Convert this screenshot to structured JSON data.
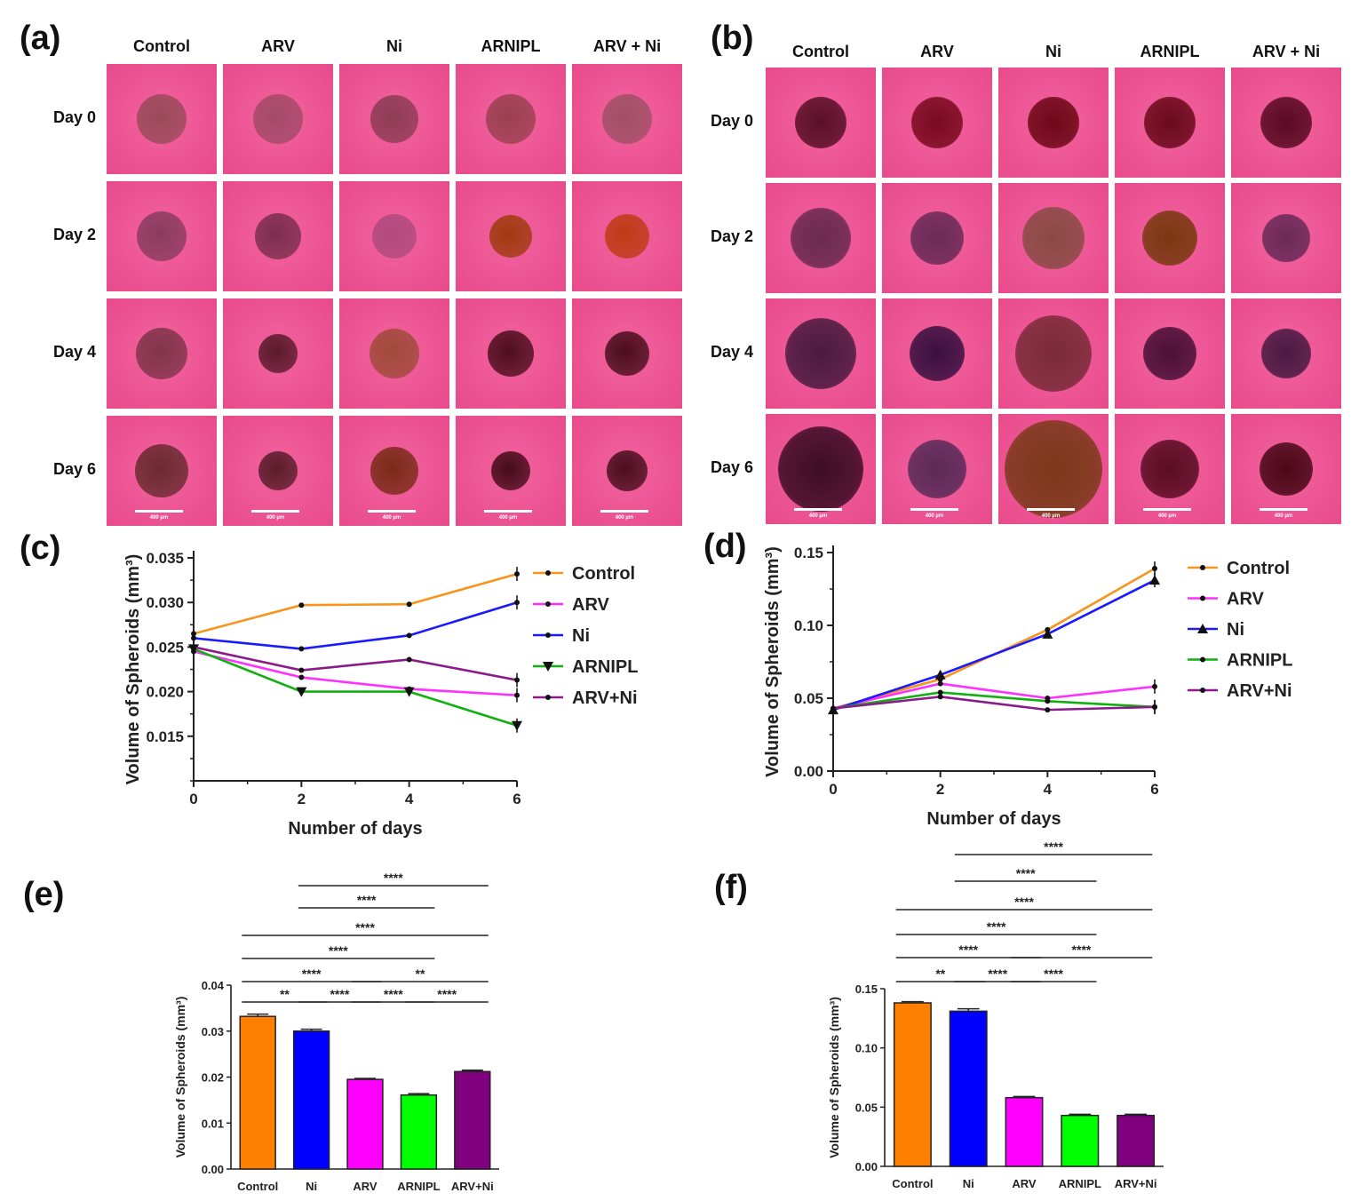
{
  "panel_labels": {
    "a": "(a)",
    "b": "(b)",
    "c": "(c)",
    "d": "(d)",
    "e": "(e)",
    "f": "(f)"
  },
  "micro_a": {
    "columns": [
      "Control",
      "ARV",
      "Ni",
      "ARNIPL",
      "ARV + Ni"
    ],
    "rows": [
      "Day 0",
      "Day 2",
      "Day 4",
      "Day 6"
    ],
    "scale_bar": "400 µm"
  },
  "micro_b": {
    "columns": [
      "Control",
      "ARV",
      "Ni",
      "ARNIPL",
      "ARV + Ni"
    ],
    "rows": [
      "Day 0",
      "Day 2",
      "Day 4",
      "Day 6"
    ],
    "scale_bar": "400 µm"
  },
  "chart_data": [
    {
      "id": "c",
      "type": "line",
      "xlabel": "Number of days",
      "ylabel": "Volume of Spheroids (mm³)",
      "x": [
        0,
        2,
        4,
        6
      ],
      "ylim": [
        0.01,
        0.035
      ],
      "xlim": [
        0,
        6
      ],
      "yticks": [
        "0.015",
        "0.020",
        "0.025",
        "0.030",
        "0.035"
      ],
      "xticks": [
        "0",
        "2",
        "4",
        "6"
      ],
      "series": [
        {
          "name": "Control",
          "color": "#f7941d",
          "values": [
            0.0265,
            0.0297,
            0.0298,
            0.0332
          ],
          "marker": "circle"
        },
        {
          "name": "ARV",
          "color": "#ff2fff",
          "values": [
            0.0245,
            0.0216,
            0.0203,
            0.0196
          ],
          "marker": "circle"
        },
        {
          "name": "Ni",
          "color": "#1a1aff",
          "values": [
            0.026,
            0.0248,
            0.0263,
            0.03
          ],
          "marker": "circle"
        },
        {
          "name": "ARNIPL",
          "color": "#10b010",
          "values": [
            0.0248,
            0.02,
            0.02,
            0.0162
          ],
          "marker": "triangle-down"
        },
        {
          "name": "ARV+Ni",
          "color": "#8b1a8b",
          "values": [
            0.025,
            0.0224,
            0.0236,
            0.0213
          ],
          "marker": "circle"
        }
      ]
    },
    {
      "id": "d",
      "type": "line",
      "xlabel": "Number of days",
      "ylabel": "Volume of Spheroids (mm³)",
      "x": [
        0,
        2,
        4,
        6
      ],
      "ylim": [
        0,
        0.15
      ],
      "xlim": [
        0,
        6
      ],
      "yticks": [
        "0.00",
        "0.05",
        "0.10",
        "0.15"
      ],
      "xticks": [
        "0",
        "2",
        "4",
        "6"
      ],
      "series": [
        {
          "name": "Control",
          "color": "#f7941d",
          "values": [
            0.043,
            0.063,
            0.097,
            0.139
          ],
          "marker": "circle"
        },
        {
          "name": "ARV",
          "color": "#ff2fff",
          "values": [
            0.043,
            0.06,
            0.05,
            0.058
          ],
          "marker": "circle"
        },
        {
          "name": "Ni",
          "color": "#1a1aff",
          "values": [
            0.042,
            0.066,
            0.094,
            0.131
          ],
          "marker": "triangle-up"
        },
        {
          "name": "ARNIPL",
          "color": "#10b010",
          "values": [
            0.043,
            0.054,
            0.048,
            0.044
          ],
          "marker": "circle"
        },
        {
          "name": "ARV+Ni",
          "color": "#8b1a8b",
          "values": [
            0.043,
            0.051,
            0.042,
            0.044
          ],
          "marker": "circle"
        }
      ]
    },
    {
      "id": "e",
      "type": "bar",
      "ylabel": "Volume of Spheroids (mm³)",
      "categories": [
        "Control",
        "Ni",
        "ARV",
        "ARNIPL",
        "ARV+Ni"
      ],
      "values": [
        0.0332,
        0.03,
        0.0195,
        0.0161,
        0.0212
      ],
      "errors": [
        0.0005,
        0.0004,
        0.0002,
        0.0003,
        0.0003
      ],
      "colors": [
        "#ff8000",
        "#0000ff",
        "#ff00ff",
        "#00ff00",
        "#800080"
      ],
      "ylim": [
        0,
        0.04
      ],
      "yticks": [
        "0.00",
        "0.01",
        "0.02",
        "0.03",
        "0.04"
      ],
      "significance": [
        {
          "from": 0,
          "to": 1,
          "label": "**"
        },
        {
          "from": 1,
          "to": 2,
          "label": "****"
        },
        {
          "from": 2,
          "to": 3,
          "label": "****"
        },
        {
          "from": 3,
          "to": 4,
          "label": "****"
        },
        {
          "from": 0,
          "to": 2,
          "label": "****"
        },
        {
          "from": 2,
          "to": 4,
          "label": "**"
        },
        {
          "from": 0,
          "to": 3,
          "label": "****"
        },
        {
          "from": 0,
          "to": 4,
          "label": "****"
        },
        {
          "from": 1,
          "to": 3,
          "label": "****"
        },
        {
          "from": 1,
          "to": 4,
          "label": "****"
        }
      ]
    },
    {
      "id": "f",
      "type": "bar",
      "ylabel": "Volume of Spheroids (mm³)",
      "categories": [
        "Control",
        "Ni",
        "ARV",
        "ARNIPL",
        "ARV+Ni"
      ],
      "values": [
        0.138,
        0.131,
        0.058,
        0.043,
        0.043
      ],
      "errors": [
        0.001,
        0.002,
        0.001,
        0.001,
        0.001
      ],
      "colors": [
        "#ff8000",
        "#0000ff",
        "#ff00ff",
        "#00ff00",
        "#800080"
      ],
      "ylim": [
        0,
        0.15
      ],
      "yticks": [
        "0.00",
        "0.05",
        "0.10",
        "0.15"
      ],
      "significance": [
        {
          "from": 0,
          "to": 1,
          "label": "**"
        },
        {
          "from": 1,
          "to": 2,
          "label": "****"
        },
        {
          "from": 2,
          "to": 3,
          "label": "****"
        },
        {
          "from": 0,
          "to": 2,
          "label": "****"
        },
        {
          "from": 2,
          "to": 4,
          "label": "****"
        },
        {
          "from": 0,
          "to": 3,
          "label": "****"
        },
        {
          "from": 0,
          "to": 4,
          "label": "****"
        },
        {
          "from": 1,
          "to": 3,
          "label": "****"
        },
        {
          "from": 1,
          "to": 4,
          "label": "****"
        }
      ]
    }
  ]
}
